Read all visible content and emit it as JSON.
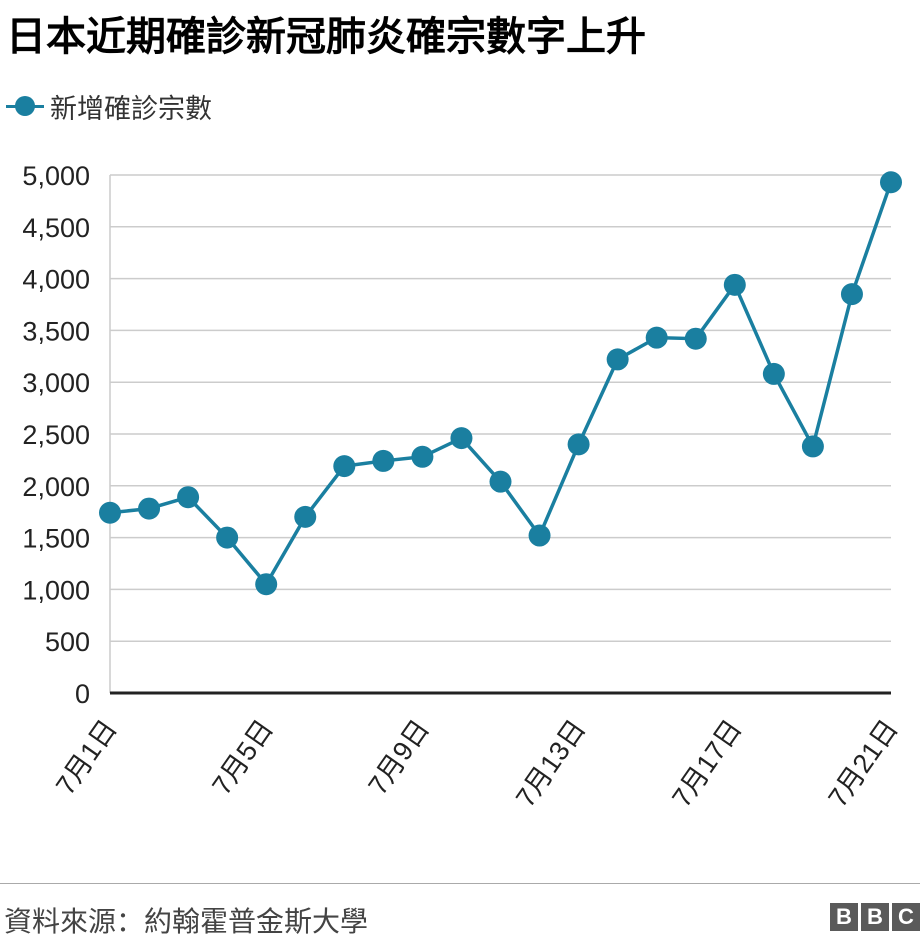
{
  "title": "日本近期確診新冠肺炎確宗數字上升",
  "legend": {
    "label": "新增確診宗數",
    "color": "#1a7fa0"
  },
  "source": "資料來源：約翰霍普金斯大學",
  "logo": [
    "B",
    "B",
    "C"
  ],
  "chart_data": {
    "type": "line",
    "title": "日本近期確診新冠肺炎確宗數字上升",
    "xlabel": "",
    "ylabel": "",
    "categories": [
      "7月1日",
      "7月2日",
      "7月3日",
      "7月4日",
      "7月5日",
      "7月6日",
      "7月7日",
      "7月8日",
      "7月9日",
      "7月10日",
      "7月11日",
      "7月12日",
      "7月13日",
      "7月14日",
      "7月15日",
      "7月16日",
      "7月17日",
      "7月18日",
      "7月19日",
      "7月20日",
      "7月21日"
    ],
    "tick_labels": [
      "7月1日",
      "7月5日",
      "7月9日",
      "7月13日",
      "7月17日",
      "7月21日"
    ],
    "tick_indices": [
      0,
      4,
      8,
      12,
      16,
      20
    ],
    "series": [
      {
        "name": "新增確診宗數",
        "color": "#1a7fa0",
        "values": [
          1740,
          1780,
          1890,
          1500,
          1050,
          1700,
          2190,
          2240,
          2280,
          2460,
          2040,
          1520,
          2400,
          3220,
          3430,
          3420,
          3940,
          3080,
          2380,
          3850,
          4930
        ]
      }
    ],
    "ylim": [
      0,
      5000
    ],
    "yticks": [
      0,
      500,
      1000,
      1500,
      2000,
      2500,
      3000,
      3500,
      4000,
      4500,
      5000
    ],
    "ytick_labels": [
      "0",
      "500",
      "1,000",
      "1,500",
      "2,000",
      "2,500",
      "3,000",
      "3,500",
      "4,000",
      "4,500",
      "5,000"
    ],
    "grid": true,
    "legend_position": "top-left"
  }
}
